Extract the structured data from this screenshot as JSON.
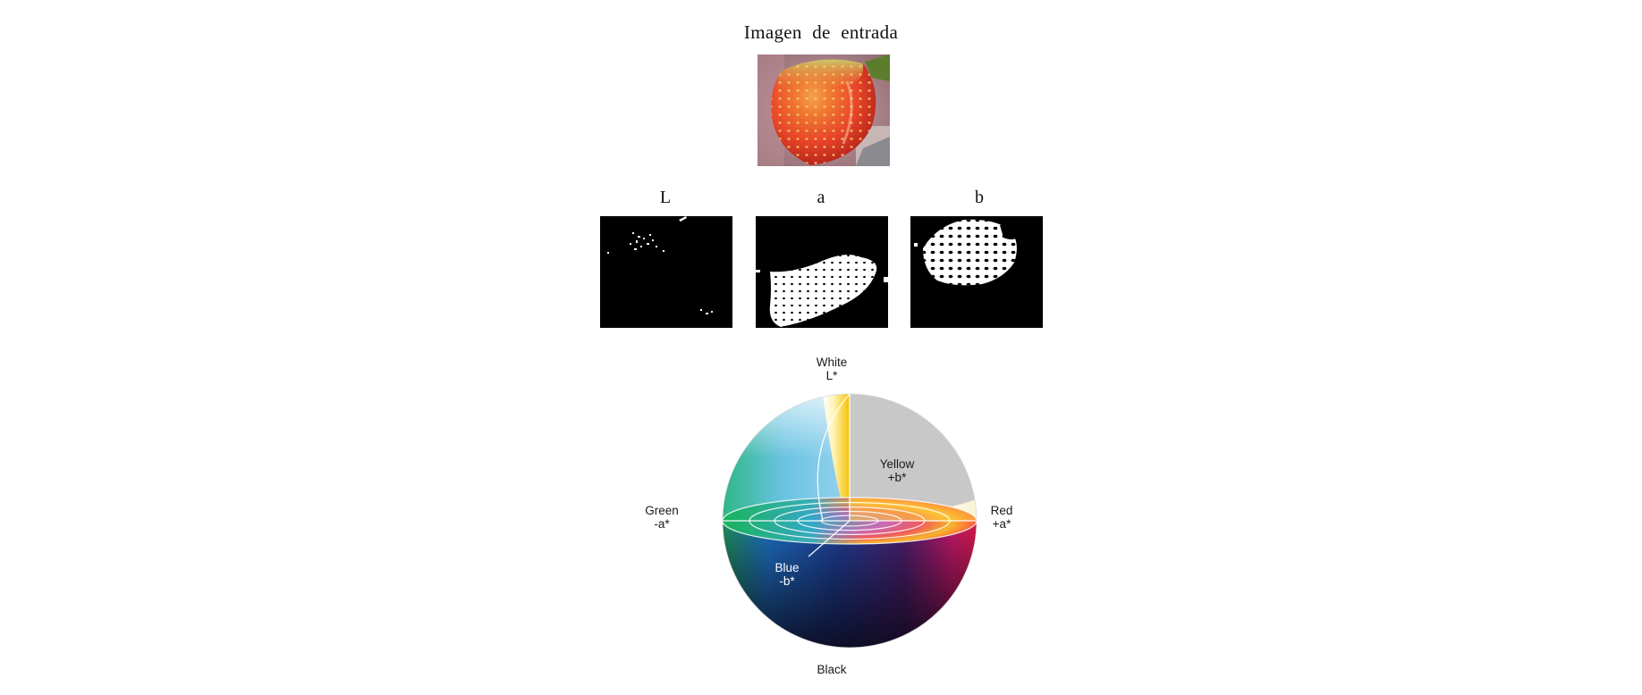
{
  "figure": {
    "input_title": "Imagen de entrada",
    "channels": [
      {
        "label": "L"
      },
      {
        "label": "a"
      },
      {
        "label": "b"
      }
    ]
  },
  "color_space": {
    "white": "White",
    "l_axis": "L*",
    "yellow": "Yellow",
    "pos_b": "+b*",
    "green": "Green",
    "neg_a": "-a*",
    "red": "Red",
    "pos_a": "+a*",
    "blue": "Blue",
    "neg_b": "-b*",
    "black": "Black"
  },
  "colors": {
    "strawberry_red": "#e8452a",
    "strawberry_orange": "#f0742e",
    "leaf_green": "#5b7d2c",
    "background_pink": "#c98ea0"
  }
}
